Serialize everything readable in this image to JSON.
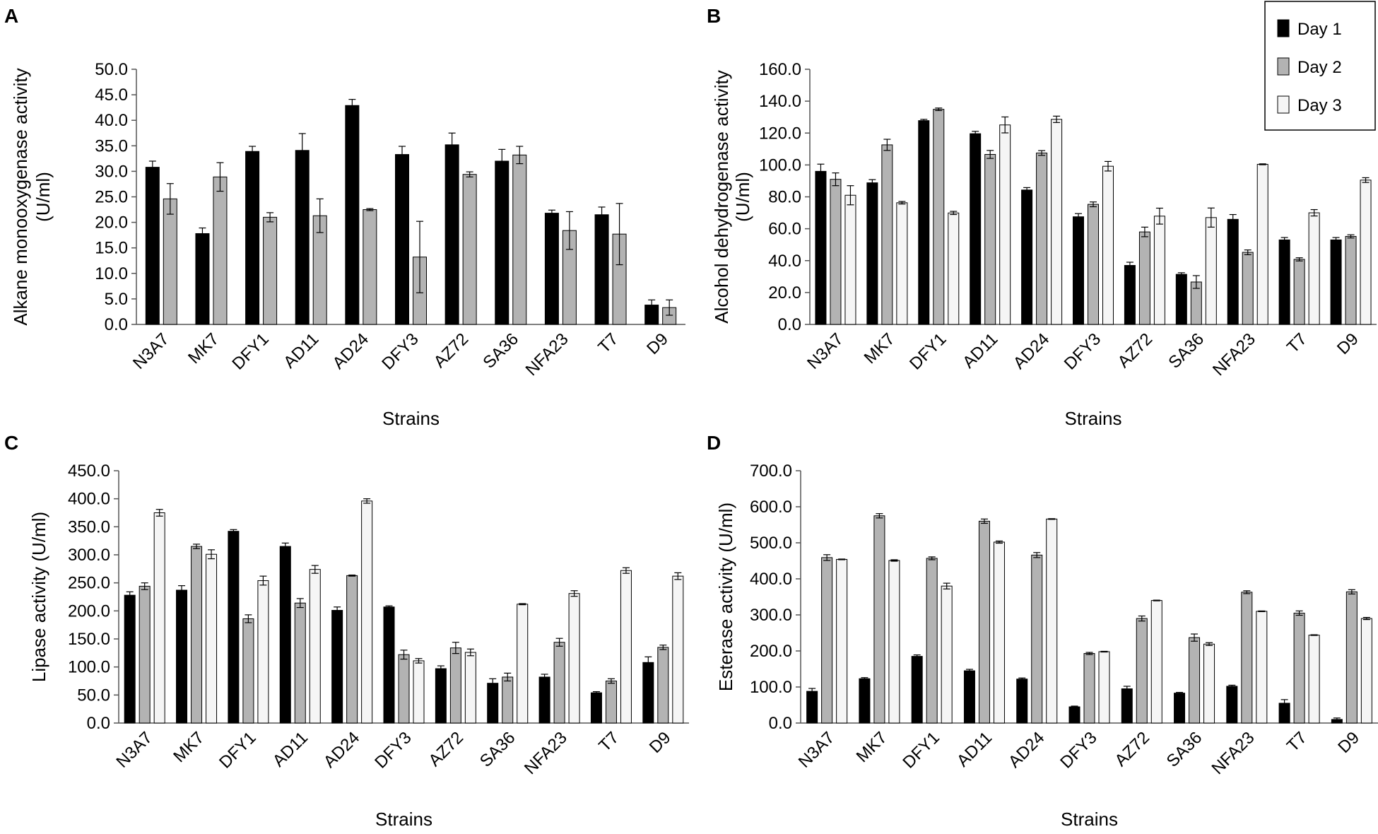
{
  "colors": {
    "day1": "#000000",
    "day2": "#b3b3b3",
    "day3": "#f5f5f5"
  },
  "legend": {
    "entries": [
      {
        "label": "Day 1",
        "color": "#000000"
      },
      {
        "label": "Day 2",
        "color": "#b3b3b3"
      },
      {
        "label": "Day 3",
        "color": "#f5f5f5"
      }
    ]
  },
  "chart_data": [
    {
      "panel": "A",
      "type": "bar",
      "title": "",
      "xlabel": "Strains",
      "ylabel": "Alkane monooxygenase activity (U/ml)",
      "ylabel_lines": [
        "Alkane monooxygenase activity",
        "(U/ml)"
      ],
      "ylim": [
        0,
        50
      ],
      "yticks": [
        "0.0",
        "5.0",
        "10.0",
        "15.0",
        "20.0",
        "25.0",
        "30.0",
        "35.0",
        "40.0",
        "45.0",
        "50.0"
      ],
      "categories": [
        "N3A7",
        "MK7",
        "DFY1",
        "AD11",
        "AD24",
        "DFY3",
        "AZ72",
        "SA36",
        "NFA23",
        "T7",
        "D9"
      ],
      "series": [
        {
          "name": "Day 1",
          "values": [
            30.8,
            17.8,
            33.9,
            34.1,
            42.9,
            33.3,
            35.2,
            32.0,
            21.8,
            21.5,
            3.8
          ],
          "errors": [
            1.2,
            1.1,
            1.0,
            3.3,
            1.2,
            1.6,
            2.3,
            2.3,
            0.6,
            1.5,
            1.0
          ]
        },
        {
          "name": "Day 2",
          "values": [
            24.6,
            28.9,
            21.0,
            21.3,
            22.5,
            13.2,
            29.4,
            33.2,
            18.4,
            17.7,
            3.3
          ],
          "errors": [
            3.0,
            2.8,
            0.9,
            3.3,
            0.2,
            7.0,
            0.5,
            1.7,
            3.7,
            6.0,
            1.5
          ]
        }
      ]
    },
    {
      "panel": "B",
      "type": "bar",
      "title": "",
      "xlabel": "Strains",
      "ylabel": "Alcohol dehydrogenase activity (U/ml)",
      "ylabel_lines": [
        "Alcohol dehydrogenase activity",
        "(U/ml)"
      ],
      "ylim": [
        0,
        160
      ],
      "yticks": [
        "0.0",
        "20.0",
        "40.0",
        "60.0",
        "80.0",
        "100.0",
        "120.0",
        "140.0",
        "160.0"
      ],
      "categories": [
        "N3A7",
        "MK7",
        "DFY1",
        "AD11",
        "AD24",
        "DFY3",
        "AZ72",
        "SA36",
        "NFA23",
        "T7",
        "D9"
      ],
      "series": [
        {
          "name": "Day 1",
          "values": [
            96.0,
            88.8,
            127.8,
            119.6,
            84.3,
            67.5,
            37.0,
            31.4,
            65.9,
            53.0,
            53.0
          ],
          "errors": [
            4.5,
            2.0,
            0.8,
            1.5,
            1.5,
            2.0,
            2.0,
            1.0,
            3.0,
            1.5,
            1.5
          ]
        },
        {
          "name": "Day 2",
          "values": [
            91.0,
            112.6,
            134.9,
            106.6,
            107.5,
            75.3,
            58.0,
            26.6,
            45.2,
            40.8,
            55.2
          ],
          "errors": [
            4.0,
            3.5,
            0.8,
            2.5,
            1.5,
            1.5,
            3.0,
            4.0,
            1.5,
            1.0,
            1.0
          ]
        },
        {
          "name": "Day 3",
          "values": [
            81.0,
            76.3,
            69.9,
            125.1,
            128.6,
            99.2,
            67.9,
            67.0,
            100.4,
            70.0,
            90.5
          ],
          "errors": [
            6.0,
            0.8,
            1.0,
            5.0,
            2.0,
            3.0,
            5.0,
            6.0,
            0.3,
            2.0,
            1.5
          ]
        }
      ]
    },
    {
      "panel": "C",
      "type": "bar",
      "title": "",
      "xlabel": "Strains",
      "ylabel": "Lipase activity (U/ml)",
      "ylabel_lines": [
        "Lipase activity (U/ml)"
      ],
      "ylim": [
        0,
        450
      ],
      "yticks": [
        "0.0",
        "50.0",
        "100.0",
        "150.0",
        "200.0",
        "250.0",
        "300.0",
        "350.0",
        "400.0",
        "450.0"
      ],
      "categories": [
        "N3A7",
        "MK7",
        "DFY1",
        "AD11",
        "AD24",
        "DFY3",
        "AZ72",
        "SA36",
        "NFA23",
        "T7",
        "D9"
      ],
      "series": [
        {
          "name": "Day 1",
          "values": [
            228,
            237,
            342,
            315,
            201,
            207,
            97,
            71,
            82,
            54,
            108
          ],
          "errors": [
            6,
            8,
            3,
            6,
            6,
            2,
            5,
            8,
            5,
            2,
            10
          ]
        },
        {
          "name": "Day 2",
          "values": [
            244,
            315,
            186,
            214,
            263,
            122,
            134,
            82,
            144,
            75,
            135
          ],
          "errors": [
            6,
            4,
            7,
            8,
            1,
            8,
            10,
            7,
            7,
            4,
            4
          ]
        },
        {
          "name": "Day 3",
          "values": [
            375,
            301,
            254,
            274,
            396,
            111,
            126,
            212,
            231,
            272,
            262
          ],
          "errors": [
            6,
            8,
            8,
            7,
            4,
            4,
            6,
            1,
            5,
            5,
            6
          ]
        }
      ]
    },
    {
      "panel": "D",
      "type": "bar",
      "title": "",
      "xlabel": "Strains",
      "ylabel": "Esterase activity (U/ml)",
      "ylabel_lines": [
        "Esterase activity (U/ml)"
      ],
      "ylim": [
        0,
        700
      ],
      "yticks": [
        "0.0",
        "100.0",
        "200.0",
        "300.0",
        "400.0",
        "500.0",
        "600.0",
        "700.0"
      ],
      "categories": [
        "N3A7",
        "MK7",
        "DFY1",
        "AD11",
        "AD24",
        "DFY3",
        "AZ72",
        "SA36",
        "NFA23",
        "T7",
        "D9"
      ],
      "series": [
        {
          "name": "Day 1",
          "values": [
            88,
            123,
            185,
            145,
            122,
            45,
            95,
            83,
            102,
            55,
            10
          ],
          "errors": [
            8,
            3,
            4,
            4,
            3,
            2,
            7,
            2,
            3,
            10,
            4
          ]
        },
        {
          "name": "Day 2",
          "values": [
            459,
            575,
            457,
            560,
            466,
            193,
            290,
            237,
            363,
            305,
            364
          ],
          "errors": [
            8,
            6,
            4,
            6,
            7,
            3,
            7,
            10,
            4,
            6,
            6
          ]
        },
        {
          "name": "Day 3",
          "values": [
            454,
            451,
            380,
            502,
            566,
            198,
            340,
            219,
            310,
            244,
            290
          ],
          "errors": [
            1,
            2,
            8,
            3,
            1,
            1,
            1,
            4,
            1,
            1,
            3
          ]
        }
      ]
    }
  ]
}
